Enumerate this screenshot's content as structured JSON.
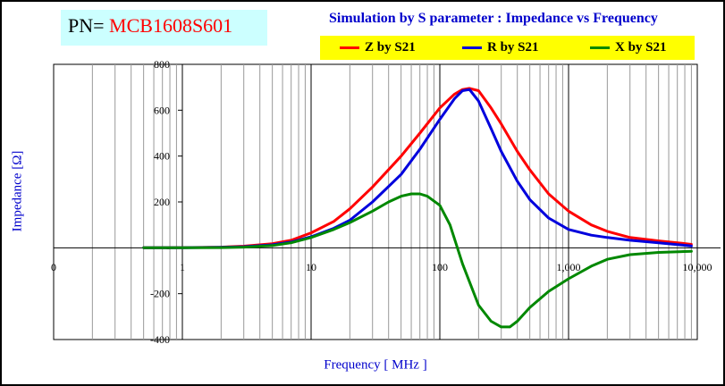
{
  "header": {
    "pn_prefix": "PN= ",
    "pn_value": "MCB1608S601",
    "title": "Simulation by S parameter : Impedance vs Frequency"
  },
  "colors": {
    "z": "#ff0000",
    "r": "#0000dd",
    "x": "#008800",
    "grid": "#999999",
    "title": "#0000cc",
    "legend_bg": "#ffff00",
    "pn_bg": "#ccffff"
  },
  "chart_data": {
    "type": "line",
    "title": "Simulation by S parameter : Impedance vs Frequency",
    "xlabel": "Frequency [ MHz ]",
    "ylabel": "Impedance [Ω]",
    "x_scale": "log",
    "xlim": [
      0.1,
      10000
    ],
    "ylim": [
      -400,
      800
    ],
    "x_ticks": [
      0.1,
      1,
      10,
      100,
      1000,
      10000
    ],
    "x_tick_labels": [
      "0",
      "1",
      "10",
      "100",
      "1,000",
      "10,000"
    ],
    "y_ticks": [
      800,
      600,
      400,
      200,
      0,
      -200,
      -400
    ],
    "y_tick_labels": [
      "800",
      "600",
      "400",
      "200",
      "-",
      "-200",
      "-400"
    ],
    "grid": true,
    "legend_position": "top-right",
    "series": [
      {
        "name": "Z by S21",
        "color": "#ff0000",
        "x": [
          0.5,
          1,
          2,
          3,
          5,
          7,
          10,
          15,
          20,
          30,
          50,
          70,
          100,
          130,
          150,
          170,
          200,
          250,
          300,
          400,
          500,
          700,
          1000,
          1500,
          2000,
          3000,
          5000,
          7000,
          9000
        ],
        "y": [
          0,
          1,
          3,
          7,
          18,
          33,
          65,
          115,
          170,
          265,
          400,
          500,
          610,
          670,
          690,
          695,
          685,
          610,
          540,
          420,
          340,
          235,
          160,
          100,
          72,
          45,
          30,
          22,
          15
        ]
      },
      {
        "name": "R by S21",
        "color": "#0000dd",
        "x": [
          0.5,
          1,
          2,
          3,
          5,
          7,
          10,
          15,
          20,
          30,
          50,
          70,
          100,
          130,
          150,
          170,
          200,
          250,
          300,
          400,
          500,
          700,
          1000,
          1500,
          2000,
          3000,
          5000,
          7000,
          9000
        ],
        "y": [
          0,
          0,
          2,
          5,
          13,
          25,
          48,
          85,
          120,
          200,
          320,
          430,
          560,
          650,
          685,
          690,
          640,
          520,
          420,
          290,
          210,
          130,
          80,
          55,
          45,
          33,
          22,
          14,
          8
        ]
      },
      {
        "name": "X by S21",
        "color": "#008800",
        "x": [
          0.5,
          1,
          2,
          3,
          5,
          7,
          10,
          15,
          20,
          30,
          40,
          50,
          60,
          70,
          80,
          100,
          120,
          150,
          200,
          250,
          300,
          350,
          400,
          500,
          700,
          1000,
          1500,
          2000,
          3000,
          5000,
          9000
        ],
        "y": [
          0,
          0,
          1,
          3,
          10,
          22,
          45,
          80,
          110,
          160,
          200,
          225,
          235,
          235,
          225,
          185,
          100,
          -70,
          -250,
          -320,
          -345,
          -345,
          -320,
          -260,
          -190,
          -135,
          -80,
          -50,
          -30,
          -20,
          -15
        ]
      }
    ]
  }
}
